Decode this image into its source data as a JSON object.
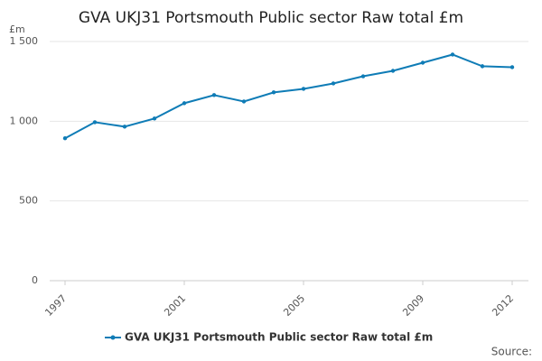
{
  "chart_data": {
    "type": "line",
    "title": "GVA UKJ31 Portsmouth Public sector Raw total £m",
    "y_label": "£m",
    "source": "Source:",
    "x": [
      1997,
      1998,
      1999,
      2000,
      2001,
      2002,
      2003,
      2004,
      2005,
      2006,
      2007,
      2008,
      2009,
      2010,
      2011,
      2012
    ],
    "series": [
      {
        "name": "GVA UKJ31 Portsmouth Public sector Raw total £m",
        "color": "#0f7cb6",
        "values": [
          893,
          994,
          966,
          1017,
          1113,
          1164,
          1124,
          1181,
          1203,
          1237,
          1282,
          1316,
          1367,
          1418,
          1345,
          1339
        ]
      }
    ],
    "xlim": [
      1997,
      2012
    ],
    "xticks": [
      1997,
      2001,
      2005,
      2009,
      2012
    ],
    "ylim": [
      0,
      1500
    ],
    "yticks": [
      0,
      500,
      {
        "value": 1000,
        "label": "1 000"
      },
      {
        "value": 1500,
        "label": "1 500"
      }
    ],
    "grid": true,
    "legend": "bottom"
  }
}
